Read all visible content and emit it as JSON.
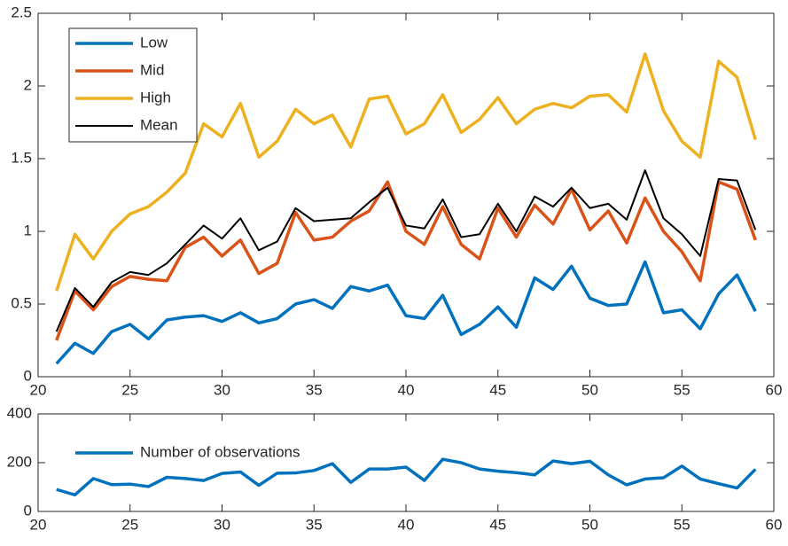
{
  "chart_data": [
    {
      "type": "line",
      "x": [
        21,
        22,
        23,
        24,
        25,
        26,
        27,
        28,
        29,
        30,
        31,
        32,
        33,
        34,
        35,
        36,
        37,
        38,
        39,
        40,
        41,
        42,
        43,
        44,
        45,
        46,
        47,
        48,
        49,
        50,
        51,
        52,
        53,
        54,
        55,
        56,
        57,
        58,
        59
      ],
      "series": [
        {
          "name": "Low",
          "color": "#0072BD",
          "width": 3.5,
          "values": [
            0.09,
            0.23,
            0.16,
            0.31,
            0.36,
            0.26,
            0.39,
            0.41,
            0.42,
            0.38,
            0.44,
            0.37,
            0.4,
            0.5,
            0.53,
            0.47,
            0.62,
            0.59,
            0.63,
            0.42,
            0.4,
            0.56,
            0.29,
            0.36,
            0.48,
            0.34,
            0.68,
            0.6,
            0.76,
            0.54,
            0.49,
            0.5,
            0.79,
            0.44,
            0.46,
            0.33,
            0.57,
            0.7,
            0.45
          ]
        },
        {
          "name": "Mid",
          "color": "#D95319",
          "width": 3.5,
          "values": [
            0.25,
            0.59,
            0.46,
            0.62,
            0.69,
            0.67,
            0.66,
            0.89,
            0.96,
            0.83,
            0.94,
            0.71,
            0.78,
            1.13,
            0.94,
            0.96,
            1.07,
            1.14,
            1.34,
            1.0,
            0.91,
            1.17,
            0.91,
            0.81,
            1.16,
            0.96,
            1.18,
            1.05,
            1.29,
            1.01,
            1.14,
            0.92,
            1.23,
            1.0,
            0.86,
            0.66,
            1.34,
            1.29,
            0.94
          ]
        },
        {
          "name": "High",
          "color": "#EDB120",
          "width": 3.5,
          "values": [
            0.59,
            0.98,
            0.81,
            1.0,
            1.12,
            1.17,
            1.27,
            1.4,
            1.74,
            1.65,
            1.88,
            1.51,
            1.62,
            1.84,
            1.74,
            1.8,
            1.58,
            1.91,
            1.93,
            1.67,
            1.74,
            1.94,
            1.68,
            1.77,
            1.92,
            1.74,
            1.84,
            1.88,
            1.85,
            1.93,
            1.94,
            1.82,
            2.22,
            1.83,
            1.62,
            1.51,
            2.17,
            2.06,
            1.63
          ]
        },
        {
          "name": "Mean",
          "color": "#000000",
          "width": 2,
          "values": [
            0.31,
            0.61,
            0.48,
            0.65,
            0.72,
            0.7,
            0.78,
            0.91,
            1.04,
            0.95,
            1.09,
            0.87,
            0.93,
            1.16,
            1.07,
            1.08,
            1.09,
            1.2,
            1.3,
            1.04,
            1.02,
            1.22,
            0.96,
            0.98,
            1.19,
            1.0,
            1.24,
            1.17,
            1.3,
            1.16,
            1.19,
            1.08,
            1.42,
            1.09,
            0.98,
            0.83,
            1.36,
            1.35,
            1.01
          ]
        }
      ],
      "xlim": [
        20,
        60
      ],
      "xticks": [
        20,
        25,
        30,
        35,
        40,
        45,
        50,
        55,
        60
      ],
      "ylim": [
        0,
        2.5
      ],
      "yticks": [
        0,
        0.5,
        1,
        1.5,
        2,
        2.5
      ],
      "legend": "upper left",
      "legend_box": true
    },
    {
      "type": "line",
      "x": [
        21,
        22,
        23,
        24,
        25,
        26,
        27,
        28,
        29,
        30,
        31,
        32,
        33,
        34,
        35,
        36,
        37,
        38,
        39,
        40,
        41,
        42,
        43,
        44,
        45,
        46,
        47,
        48,
        49,
        50,
        51,
        52,
        53,
        54,
        55,
        56,
        57,
        58,
        59
      ],
      "series": [
        {
          "name": "Number of observations",
          "color": "#0072BD",
          "width": 3.5,
          "values": [
            90,
            68,
            135,
            110,
            112,
            102,
            140,
            135,
            127,
            156,
            162,
            107,
            157,
            158,
            168,
            196,
            119,
            174,
            174,
            182,
            127,
            214,
            200,
            174,
            165,
            159,
            150,
            207,
            196,
            206,
            150,
            109,
            133,
            138,
            186,
            133,
            114,
            96,
            173
          ]
        }
      ],
      "xlim": [
        20,
        60
      ],
      "xticks": [
        20,
        25,
        30,
        35,
        40,
        45,
        50,
        55,
        60
      ],
      "ylim": [
        0,
        400
      ],
      "yticks": [
        0,
        200,
        400
      ],
      "legend": "upper left",
      "legend_box": false
    }
  ]
}
